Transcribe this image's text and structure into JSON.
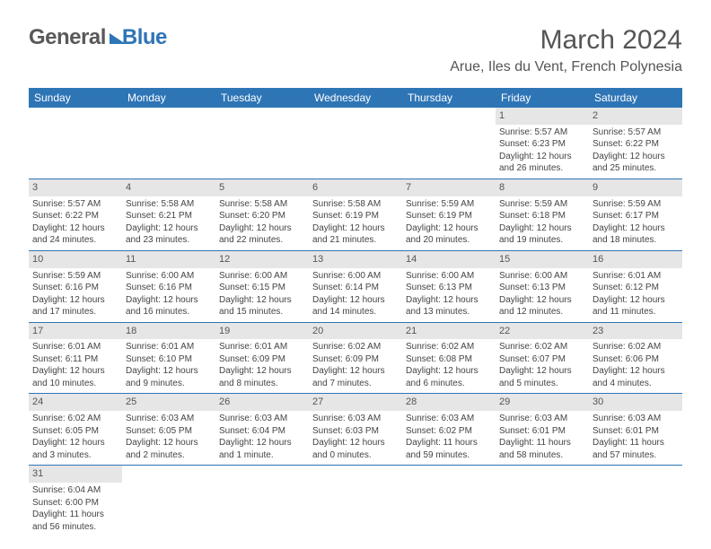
{
  "logo": {
    "text1": "General",
    "text2": "Blue"
  },
  "title": "March 2024",
  "location": "Arue, Iles du Vent, French Polynesia",
  "dayHeaders": [
    "Sunday",
    "Monday",
    "Tuesday",
    "Wednesday",
    "Thursday",
    "Friday",
    "Saturday"
  ],
  "weeks": [
    [
      null,
      null,
      null,
      null,
      null,
      {
        "n": "1",
        "sr": "Sunrise: 5:57 AM",
        "ss": "Sunset: 6:23 PM",
        "d1": "Daylight: 12 hours",
        "d2": "and 26 minutes."
      },
      {
        "n": "2",
        "sr": "Sunrise: 5:57 AM",
        "ss": "Sunset: 6:22 PM",
        "d1": "Daylight: 12 hours",
        "d2": "and 25 minutes."
      }
    ],
    [
      {
        "n": "3",
        "sr": "Sunrise: 5:57 AM",
        "ss": "Sunset: 6:22 PM",
        "d1": "Daylight: 12 hours",
        "d2": "and 24 minutes."
      },
      {
        "n": "4",
        "sr": "Sunrise: 5:58 AM",
        "ss": "Sunset: 6:21 PM",
        "d1": "Daylight: 12 hours",
        "d2": "and 23 minutes."
      },
      {
        "n": "5",
        "sr": "Sunrise: 5:58 AM",
        "ss": "Sunset: 6:20 PM",
        "d1": "Daylight: 12 hours",
        "d2": "and 22 minutes."
      },
      {
        "n": "6",
        "sr": "Sunrise: 5:58 AM",
        "ss": "Sunset: 6:19 PM",
        "d1": "Daylight: 12 hours",
        "d2": "and 21 minutes."
      },
      {
        "n": "7",
        "sr": "Sunrise: 5:59 AM",
        "ss": "Sunset: 6:19 PM",
        "d1": "Daylight: 12 hours",
        "d2": "and 20 minutes."
      },
      {
        "n": "8",
        "sr": "Sunrise: 5:59 AM",
        "ss": "Sunset: 6:18 PM",
        "d1": "Daylight: 12 hours",
        "d2": "and 19 minutes."
      },
      {
        "n": "9",
        "sr": "Sunrise: 5:59 AM",
        "ss": "Sunset: 6:17 PM",
        "d1": "Daylight: 12 hours",
        "d2": "and 18 minutes."
      }
    ],
    [
      {
        "n": "10",
        "sr": "Sunrise: 5:59 AM",
        "ss": "Sunset: 6:16 PM",
        "d1": "Daylight: 12 hours",
        "d2": "and 17 minutes."
      },
      {
        "n": "11",
        "sr": "Sunrise: 6:00 AM",
        "ss": "Sunset: 6:16 PM",
        "d1": "Daylight: 12 hours",
        "d2": "and 16 minutes."
      },
      {
        "n": "12",
        "sr": "Sunrise: 6:00 AM",
        "ss": "Sunset: 6:15 PM",
        "d1": "Daylight: 12 hours",
        "d2": "and 15 minutes."
      },
      {
        "n": "13",
        "sr": "Sunrise: 6:00 AM",
        "ss": "Sunset: 6:14 PM",
        "d1": "Daylight: 12 hours",
        "d2": "and 14 minutes."
      },
      {
        "n": "14",
        "sr": "Sunrise: 6:00 AM",
        "ss": "Sunset: 6:13 PM",
        "d1": "Daylight: 12 hours",
        "d2": "and 13 minutes."
      },
      {
        "n": "15",
        "sr": "Sunrise: 6:00 AM",
        "ss": "Sunset: 6:13 PM",
        "d1": "Daylight: 12 hours",
        "d2": "and 12 minutes."
      },
      {
        "n": "16",
        "sr": "Sunrise: 6:01 AM",
        "ss": "Sunset: 6:12 PM",
        "d1": "Daylight: 12 hours",
        "d2": "and 11 minutes."
      }
    ],
    [
      {
        "n": "17",
        "sr": "Sunrise: 6:01 AM",
        "ss": "Sunset: 6:11 PM",
        "d1": "Daylight: 12 hours",
        "d2": "and 10 minutes."
      },
      {
        "n": "18",
        "sr": "Sunrise: 6:01 AM",
        "ss": "Sunset: 6:10 PM",
        "d1": "Daylight: 12 hours",
        "d2": "and 9 minutes."
      },
      {
        "n": "19",
        "sr": "Sunrise: 6:01 AM",
        "ss": "Sunset: 6:09 PM",
        "d1": "Daylight: 12 hours",
        "d2": "and 8 minutes."
      },
      {
        "n": "20",
        "sr": "Sunrise: 6:02 AM",
        "ss": "Sunset: 6:09 PM",
        "d1": "Daylight: 12 hours",
        "d2": "and 7 minutes."
      },
      {
        "n": "21",
        "sr": "Sunrise: 6:02 AM",
        "ss": "Sunset: 6:08 PM",
        "d1": "Daylight: 12 hours",
        "d2": "and 6 minutes."
      },
      {
        "n": "22",
        "sr": "Sunrise: 6:02 AM",
        "ss": "Sunset: 6:07 PM",
        "d1": "Daylight: 12 hours",
        "d2": "and 5 minutes."
      },
      {
        "n": "23",
        "sr": "Sunrise: 6:02 AM",
        "ss": "Sunset: 6:06 PM",
        "d1": "Daylight: 12 hours",
        "d2": "and 4 minutes."
      }
    ],
    [
      {
        "n": "24",
        "sr": "Sunrise: 6:02 AM",
        "ss": "Sunset: 6:05 PM",
        "d1": "Daylight: 12 hours",
        "d2": "and 3 minutes."
      },
      {
        "n": "25",
        "sr": "Sunrise: 6:03 AM",
        "ss": "Sunset: 6:05 PM",
        "d1": "Daylight: 12 hours",
        "d2": "and 2 minutes."
      },
      {
        "n": "26",
        "sr": "Sunrise: 6:03 AM",
        "ss": "Sunset: 6:04 PM",
        "d1": "Daylight: 12 hours",
        "d2": "and 1 minute."
      },
      {
        "n": "27",
        "sr": "Sunrise: 6:03 AM",
        "ss": "Sunset: 6:03 PM",
        "d1": "Daylight: 12 hours",
        "d2": "and 0 minutes."
      },
      {
        "n": "28",
        "sr": "Sunrise: 6:03 AM",
        "ss": "Sunset: 6:02 PM",
        "d1": "Daylight: 11 hours",
        "d2": "and 59 minutes."
      },
      {
        "n": "29",
        "sr": "Sunrise: 6:03 AM",
        "ss": "Sunset: 6:01 PM",
        "d1": "Daylight: 11 hours",
        "d2": "and 58 minutes."
      },
      {
        "n": "30",
        "sr": "Sunrise: 6:03 AM",
        "ss": "Sunset: 6:01 PM",
        "d1": "Daylight: 11 hours",
        "d2": "and 57 minutes."
      }
    ],
    [
      {
        "n": "31",
        "sr": "Sunrise: 6:04 AM",
        "ss": "Sunset: 6:00 PM",
        "d1": "Daylight: 11 hours",
        "d2": "and 56 minutes."
      },
      null,
      null,
      null,
      null,
      null,
      null
    ]
  ],
  "colors": {
    "headerBg": "#2e75b6",
    "dayNumBg": "#e6e6e6",
    "ruleColor": "#2e75b6"
  }
}
